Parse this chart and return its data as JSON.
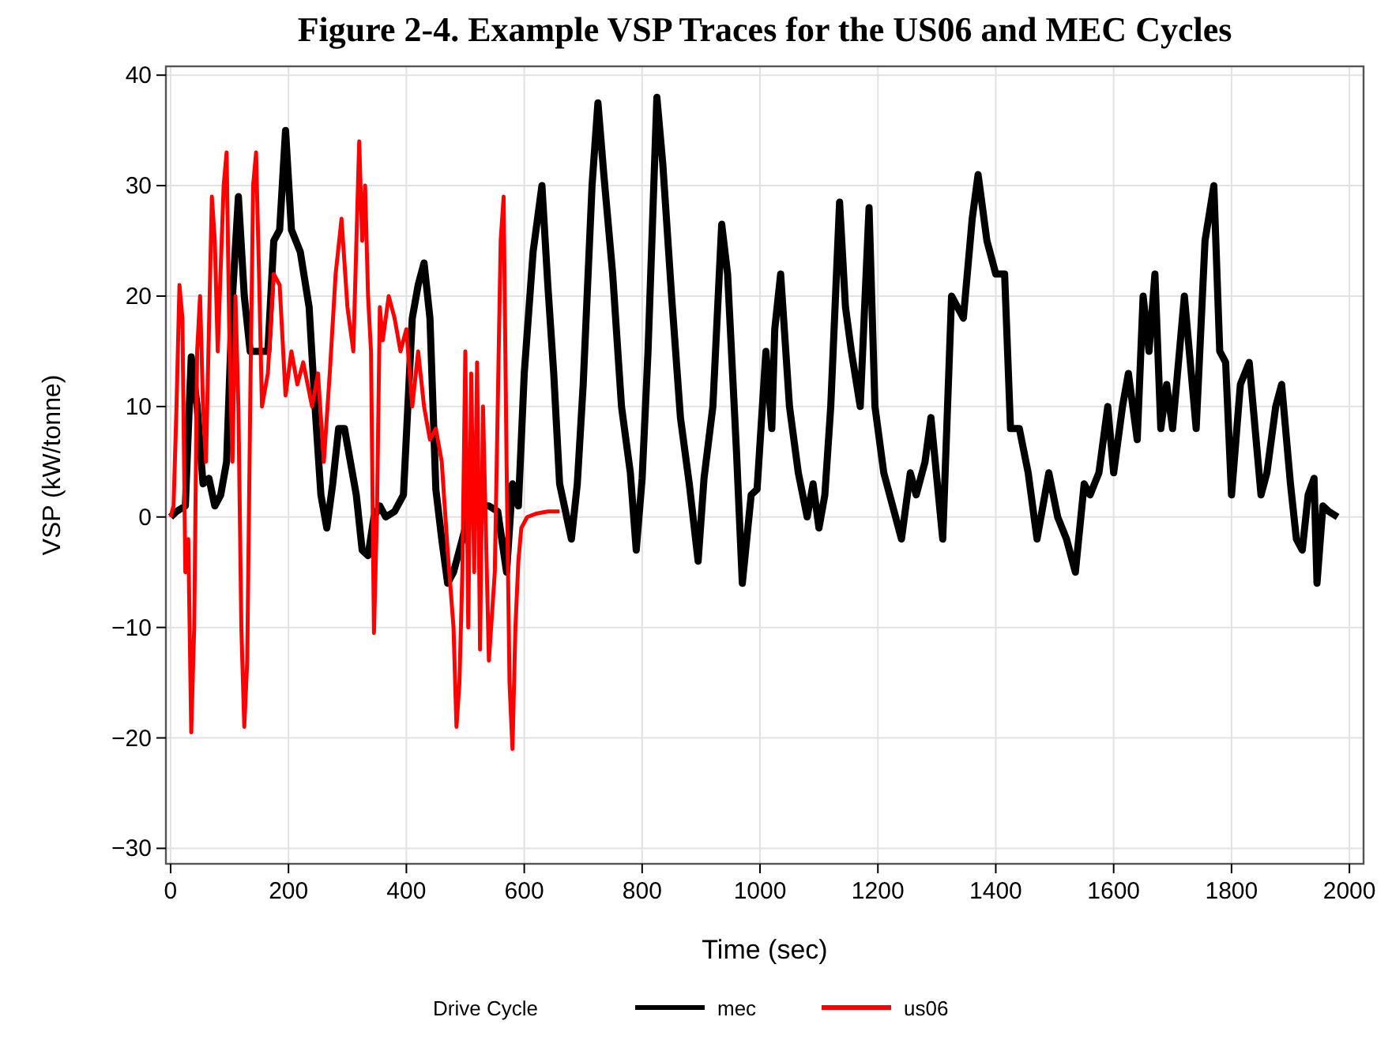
{
  "chart_data": {
    "type": "line",
    "title": "Figure 2-4. Example VSP Traces for the US06 and MEC Cycles",
    "xlabel": "Time (sec)",
    "ylabel": "VSP (kW/tonne)",
    "legend_title": "Drive Cycle",
    "xlim": [
      -8,
      2024
    ],
    "xticks": [
      0,
      200,
      400,
      600,
      800,
      1000,
      1200,
      1400,
      1600,
      1800,
      2000
    ],
    "ylim": [
      -31.4,
      40.8
    ],
    "yticks": [
      -30,
      -20,
      -10,
      0,
      10,
      20,
      30,
      40
    ],
    "grid": true,
    "legend": "bottom",
    "line_style": "solid",
    "marker": "none",
    "series": [
      {
        "name": "mec",
        "color": "#000000",
        "x": [
          0,
          10,
          25,
          35,
          45,
          55,
          65,
          75,
          85,
          95,
          105,
          115,
          125,
          135,
          150,
          165,
          175,
          185,
          195,
          205,
          220,
          235,
          245,
          255,
          265,
          275,
          285,
          295,
          305,
          315,
          325,
          335,
          345,
          355,
          365,
          380,
          395,
          410,
          420,
          430,
          440,
          450,
          460,
          470,
          480,
          495,
          505,
          515,
          540,
          555,
          570,
          580,
          590,
          600,
          615,
          630,
          640,
          650,
          660,
          670,
          680,
          690,
          700,
          715,
          725,
          735,
          750,
          765,
          780,
          790,
          800,
          810,
          825,
          835,
          850,
          865,
          880,
          895,
          905,
          920,
          935,
          945,
          960,
          970,
          985,
          995,
          1010,
          1020,
          1025,
          1035,
          1050,
          1065,
          1080,
          1090,
          1100,
          1110,
          1120,
          1135,
          1145,
          1155,
          1170,
          1185,
          1195,
          1210,
          1225,
          1240,
          1255,
          1265,
          1280,
          1290,
          1310,
          1325,
          1345,
          1360,
          1370,
          1385,
          1400,
          1415,
          1425,
          1440,
          1455,
          1470,
          1490,
          1505,
          1520,
          1535,
          1550,
          1560,
          1575,
          1590,
          1600,
          1615,
          1625,
          1640,
          1650,
          1660,
          1670,
          1680,
          1690,
          1700,
          1720,
          1740,
          1755,
          1770,
          1780,
          1790,
          1800,
          1815,
          1830,
          1850,
          1860,
          1875,
          1885,
          1900,
          1910,
          1920,
          1930,
          1940,
          1945,
          1955,
          1965,
          1980
        ],
        "values": [
          0,
          0.5,
          1,
          14.5,
          10,
          3,
          3.5,
          1,
          2,
          5,
          20,
          29,
          20,
          15,
          15,
          15,
          25,
          26,
          35,
          26,
          24,
          19,
          10,
          2,
          -1,
          3,
          8,
          8,
          5,
          2,
          -3,
          -3.5,
          0,
          1,
          0,
          0.5,
          2,
          18,
          21,
          23,
          18,
          2.5,
          -2,
          -6,
          -5,
          -2,
          0,
          1,
          1,
          0.5,
          -5,
          3,
          1,
          13,
          24,
          30,
          21,
          13,
          3,
          0.5,
          -2,
          3,
          12,
          30,
          37.5,
          31,
          22,
          10,
          4,
          -3,
          3.5,
          15,
          38,
          32,
          20,
          9,
          3,
          -4,
          3.5,
          10,
          26.5,
          22,
          6,
          -6,
          2,
          2.5,
          15,
          8,
          17,
          22,
          10,
          4,
          0,
          3,
          -1,
          2,
          10,
          28.5,
          19,
          15,
          10,
          28,
          10,
          4,
          1,
          -2,
          4,
          2,
          5,
          9,
          -2,
          20,
          18,
          27,
          31,
          25,
          22,
          22,
          8,
          8,
          4,
          -2,
          4,
          0,
          -2,
          -5,
          3,
          2,
          4,
          10,
          4,
          10,
          13,
          7,
          20,
          15,
          22,
          8,
          12,
          8,
          20,
          8,
          25,
          30,
          15,
          14,
          2,
          12,
          14,
          2,
          4,
          10,
          12,
          3,
          -2,
          -3,
          2,
          3.5,
          -6,
          1,
          0.5,
          0
        ]
      },
      {
        "name": "us06",
        "color": "#ff0000",
        "x": [
          0,
          5,
          10,
          15,
          20,
          25,
          30,
          35,
          40,
          45,
          50,
          55,
          60,
          70,
          75,
          80,
          90,
          95,
          100,
          105,
          110,
          115,
          120,
          125,
          130,
          135,
          140,
          145,
          150,
          155,
          165,
          175,
          185,
          195,
          205,
          215,
          225,
          240,
          250,
          260,
          270,
          280,
          290,
          300,
          310,
          320,
          325,
          330,
          335,
          340,
          345,
          350,
          355,
          360,
          370,
          380,
          390,
          400,
          410,
          420,
          430,
          440,
          450,
          460,
          470,
          480,
          485,
          490,
          495,
          500,
          505,
          510,
          515,
          520,
          525,
          530,
          540,
          550,
          560,
          565,
          570,
          575,
          580,
          585,
          590,
          595,
          605,
          620,
          640,
          660
        ],
        "values": [
          0,
          1,
          10,
          21,
          18,
          -5,
          -2,
          -19.5,
          -10,
          15,
          20,
          10,
          5,
          29,
          25,
          15,
          30,
          33,
          15,
          5,
          20,
          10,
          -10,
          -19,
          -13,
          10,
          30,
          33,
          22,
          10,
          13,
          22,
          21,
          11,
          15,
          12,
          14,
          10,
          13,
          5,
          13,
          22,
          27,
          19,
          15,
          34,
          25,
          30,
          20,
          15,
          -10.5,
          0,
          19,
          16,
          20,
          18,
          15,
          17,
          10,
          15,
          10,
          7,
          8,
          5,
          -3,
          -10,
          -19,
          -15,
          -5,
          15,
          -10,
          13,
          -5,
          14,
          -12,
          10,
          -13,
          -5,
          25,
          29,
          5,
          -15,
          -21,
          -10,
          -4,
          -1,
          0,
          0.3,
          0.5,
          0.5
        ]
      }
    ]
  }
}
